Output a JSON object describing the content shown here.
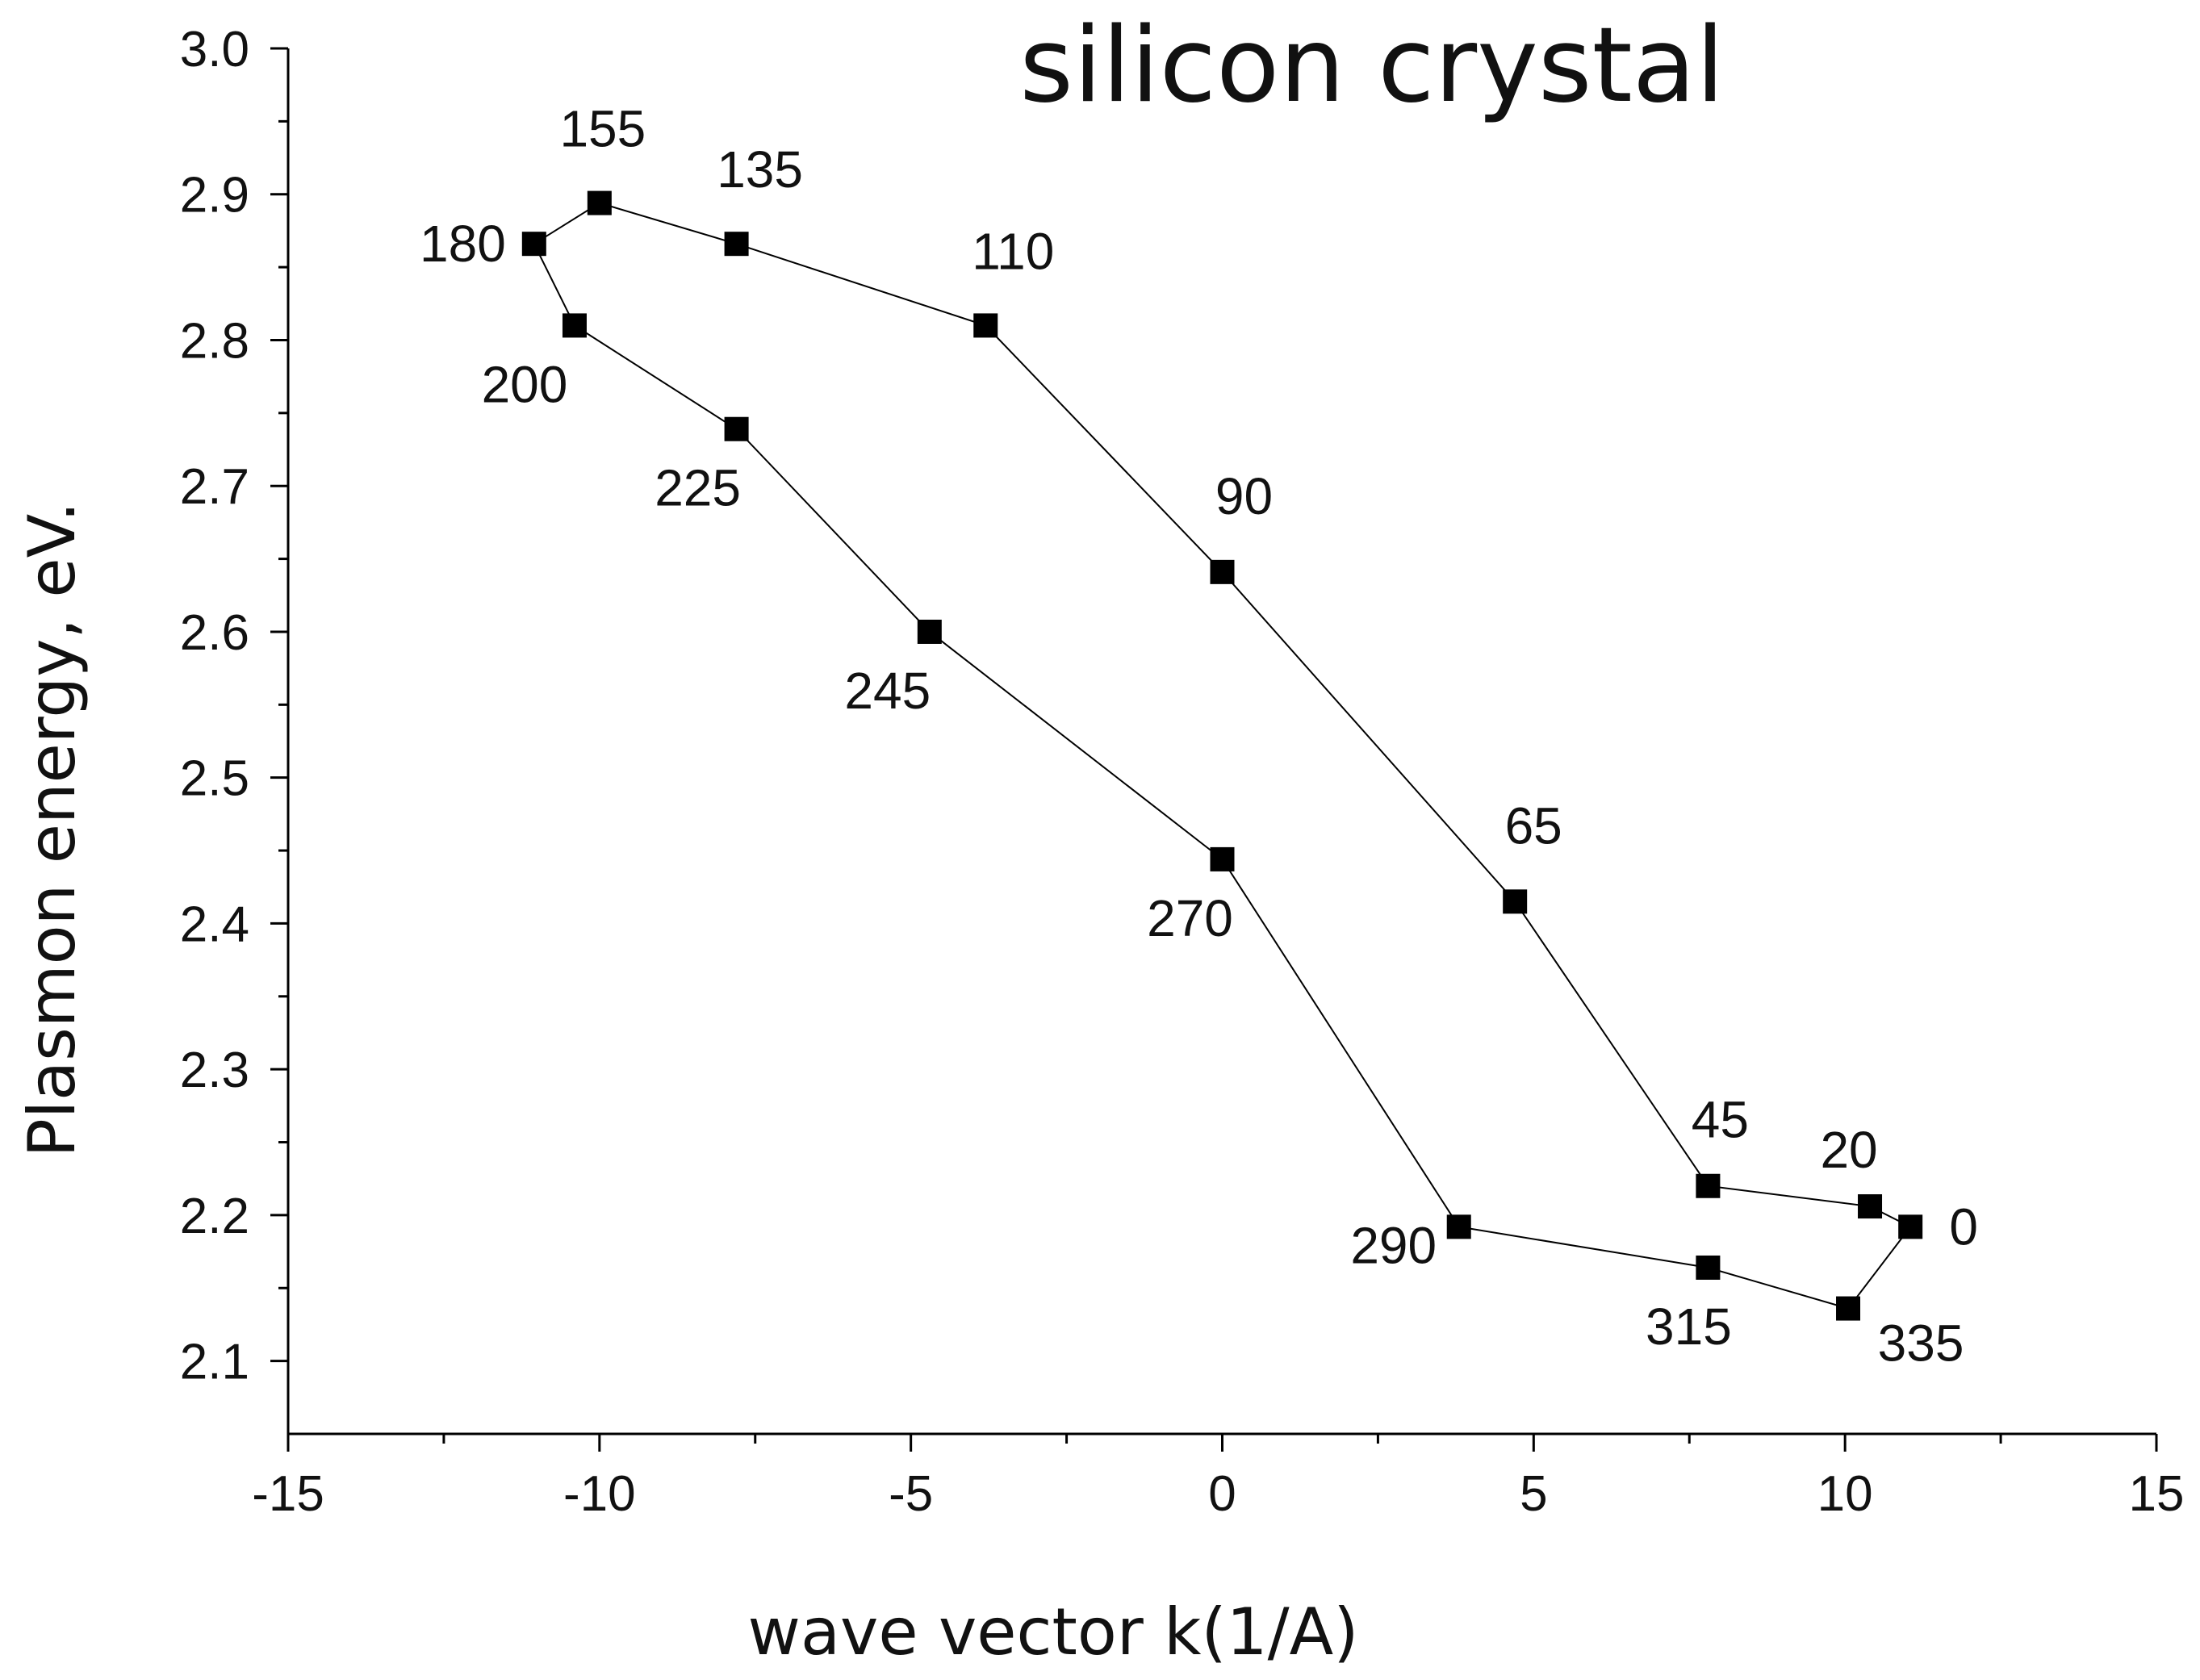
{
  "chart_data": {
    "type": "scatter",
    "title": "silicon crystal",
    "xlabel": "wave vector k(1/A)",
    "ylabel": "Plasmon energy, eV.",
    "xlim": [
      -15,
      15
    ],
    "ylim": [
      2.05,
      3.0
    ],
    "x_ticks": [
      "-15",
      "-10",
      "-5",
      "0",
      "5",
      "10",
      "15"
    ],
    "y_ticks": [
      "2.1",
      "2.2",
      "2.3",
      "2.4",
      "2.5",
      "2.6",
      "2.7",
      "2.8",
      "2.9",
      "3.0"
    ],
    "marker": "square",
    "color": "#000000",
    "closed_path": true,
    "points": [
      {
        "label": "0",
        "x": 11.05,
        "y": 2.192
      },
      {
        "label": "20",
        "x": 10.4,
        "y": 2.206
      },
      {
        "label": "45",
        "x": 7.8,
        "y": 2.22
      },
      {
        "label": "65",
        "x": 4.7,
        "y": 2.415
      },
      {
        "label": "90",
        "x": 0.0,
        "y": 2.641
      },
      {
        "label": "110",
        "x": -3.8,
        "y": 2.81
      },
      {
        "label": "135",
        "x": -7.8,
        "y": 2.866
      },
      {
        "label": "155",
        "x": -10.0,
        "y": 2.894
      },
      {
        "label": "180",
        "x": -11.05,
        "y": 2.866
      },
      {
        "label": "200",
        "x": -10.4,
        "y": 2.81
      },
      {
        "label": "225",
        "x": -7.8,
        "y": 2.739
      },
      {
        "label": "245",
        "x": -4.7,
        "y": 2.6
      },
      {
        "label": "270",
        "x": 0.0,
        "y": 2.444
      },
      {
        "label": "290",
        "x": 3.8,
        "y": 2.192
      },
      {
        "label": "315",
        "x": 7.8,
        "y": 2.164
      },
      {
        "label": "335",
        "x": 10.05,
        "y": 2.136
      }
    ]
  }
}
